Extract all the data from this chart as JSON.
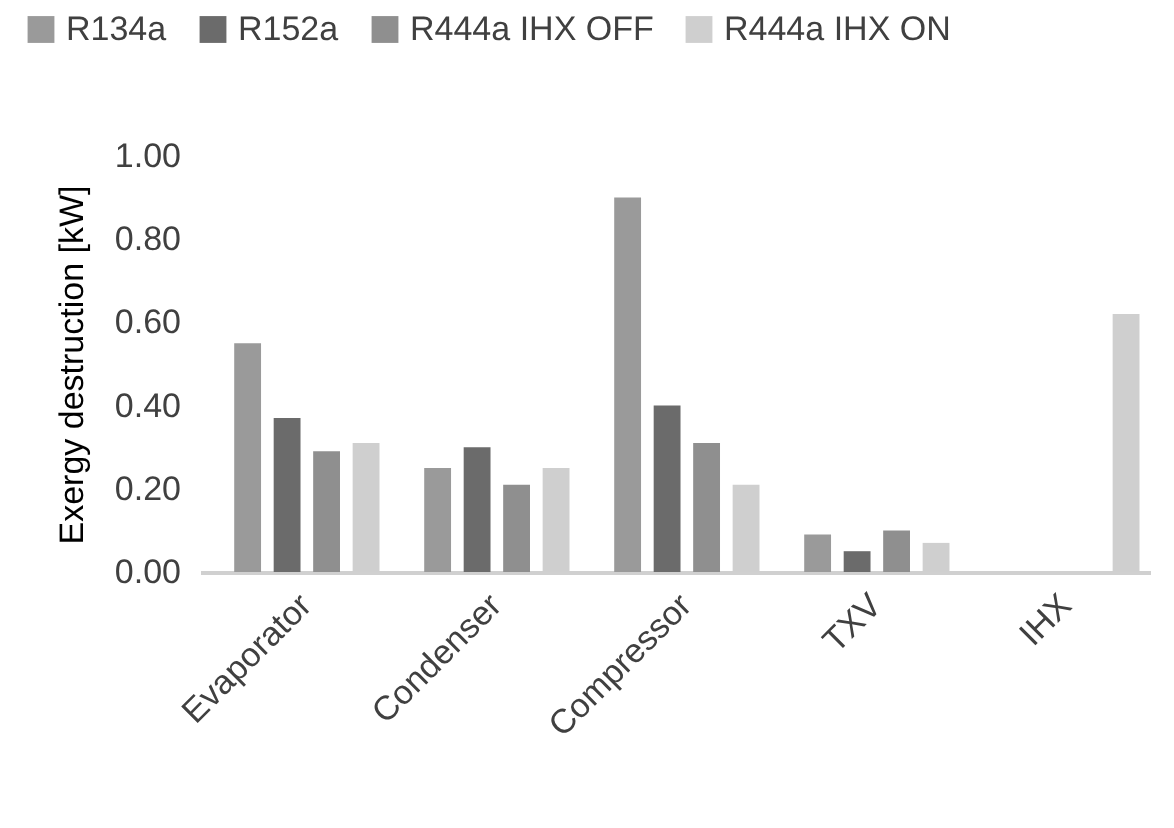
{
  "chart_data": {
    "type": "bar",
    "ylabel": "Exergy destruction [kW]",
    "categories": [
      "Evaporator",
      "Condenser",
      "Compressor",
      "TXV",
      "IHX"
    ],
    "series": [
      {
        "name": "R134a",
        "color": "#9a9a9a",
        "values": [
          0.55,
          0.25,
          0.9,
          0.09,
          null
        ]
      },
      {
        "name": "R152a",
        "color": "#6b6b6b",
        "values": [
          0.37,
          0.3,
          0.4,
          0.05,
          null
        ]
      },
      {
        "name": "R444a IHX OFF",
        "color": "#8f8f8f",
        "values": [
          0.29,
          0.21,
          0.31,
          0.1,
          null
        ]
      },
      {
        "name": "R444a IHX ON",
        "color": "#cfcfcf",
        "values": [
          0.31,
          0.25,
          0.21,
          0.07,
          0.62
        ]
      }
    ],
    "ylim": [
      0,
      1
    ],
    "yticks": [
      {
        "value": 0,
        "label": "0.00"
      },
      {
        "value": 0.2,
        "label": "0.20"
      },
      {
        "value": 0.4,
        "label": "0.40"
      },
      {
        "value": 0.6,
        "label": "0.60"
      },
      {
        "value": 0.8,
        "label": "0.80"
      },
      {
        "value": 1,
        "label": "1.00"
      }
    ],
    "grid": false,
    "legend": "top"
  }
}
